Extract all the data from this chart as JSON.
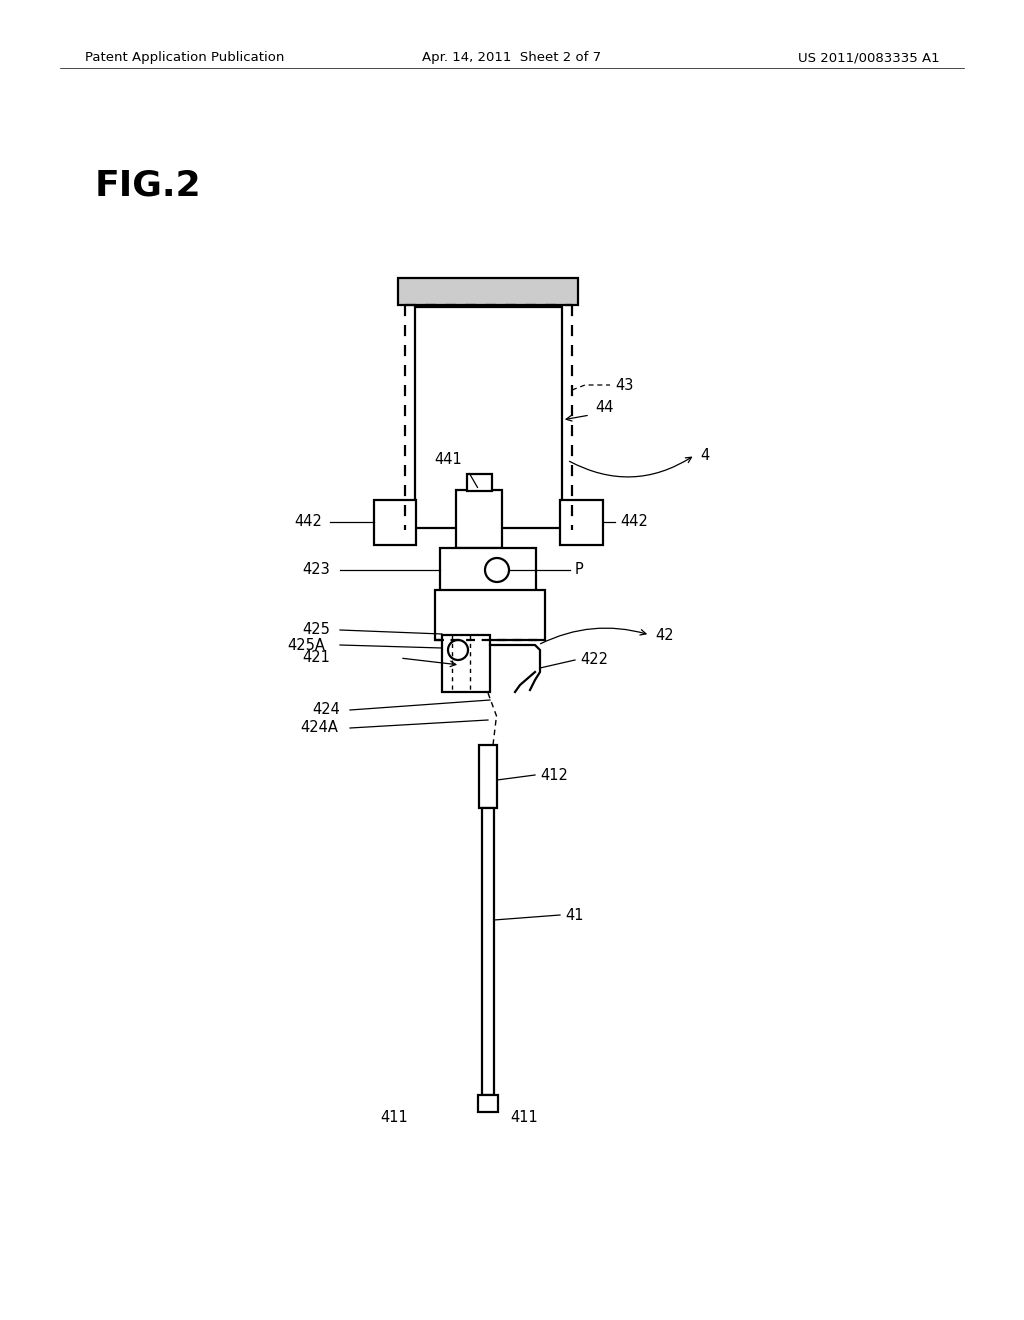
{
  "bg_color": "#ffffff",
  "header_left": "Patent Application Publication",
  "header_center": "Apr. 14, 2011  Sheet 2 of 7",
  "header_right": "US 2011/0083335 A1",
  "fig_label": "FIG.2"
}
